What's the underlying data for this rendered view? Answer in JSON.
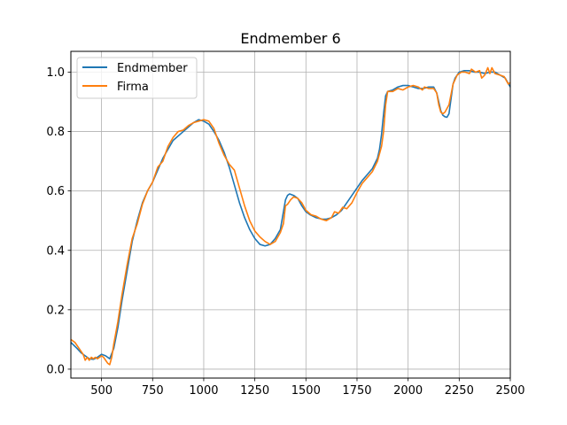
{
  "chart_data": {
    "type": "line",
    "title": "Endmember 6",
    "xlabel": "",
    "ylabel": "",
    "xlim": [
      350,
      2500
    ],
    "ylim": [
      -0.03,
      1.07
    ],
    "xticks": [
      500,
      750,
      1000,
      1250,
      1500,
      1750,
      2000,
      2250,
      2500
    ],
    "yticks": [
      0.0,
      0.2,
      0.4,
      0.6,
      0.8,
      1.0
    ],
    "xtick_labels": [
      "500",
      "750",
      "1000",
      "1250",
      "1500",
      "1750",
      "2000",
      "2250",
      "2500"
    ],
    "ytick_labels": [
      "0.0",
      "0.2",
      "0.4",
      "0.6",
      "0.8",
      "1.0"
    ],
    "grid": true,
    "legend_position": "top-left",
    "series": [
      {
        "name": "Endmember",
        "color": "#1f77b4",
        "x": [
          350,
          380,
          400,
          420,
          440,
          460,
          480,
          500,
          520,
          540,
          560,
          580,
          600,
          625,
          650,
          675,
          700,
          725,
          750,
          775,
          800,
          850,
          900,
          950,
          975,
          1000,
          1025,
          1050,
          1075,
          1100,
          1125,
          1150,
          1175,
          1200,
          1225,
          1250,
          1275,
          1300,
          1325,
          1350,
          1375,
          1390,
          1400,
          1410,
          1420,
          1440,
          1460,
          1480,
          1500,
          1520,
          1550,
          1580,
          1600,
          1625,
          1650,
          1675,
          1700,
          1725,
          1750,
          1775,
          1800,
          1825,
          1850,
          1860,
          1870,
          1880,
          1890,
          1900,
          1925,
          1950,
          1975,
          2000,
          2025,
          2050,
          2075,
          2100,
          2125,
          2140,
          2150,
          2160,
          2170,
          2180,
          2190,
          2200,
          2210,
          2220,
          2230,
          2250,
          2275,
          2300,
          2325,
          2350,
          2375,
          2400,
          2425,
          2450,
          2475,
          2500
        ],
        "y": [
          0.09,
          0.07,
          0.055,
          0.045,
          0.035,
          0.033,
          0.04,
          0.05,
          0.045,
          0.035,
          0.07,
          0.14,
          0.23,
          0.33,
          0.43,
          0.5,
          0.56,
          0.6,
          0.63,
          0.67,
          0.71,
          0.77,
          0.8,
          0.83,
          0.84,
          0.835,
          0.825,
          0.8,
          0.77,
          0.73,
          0.68,
          0.62,
          0.56,
          0.51,
          0.47,
          0.44,
          0.42,
          0.415,
          0.42,
          0.44,
          0.47,
          0.53,
          0.57,
          0.585,
          0.59,
          0.585,
          0.575,
          0.55,
          0.53,
          0.52,
          0.51,
          0.505,
          0.505,
          0.51,
          0.52,
          0.535,
          0.56,
          0.585,
          0.61,
          0.635,
          0.655,
          0.675,
          0.71,
          0.74,
          0.79,
          0.86,
          0.92,
          0.935,
          0.94,
          0.95,
          0.955,
          0.955,
          0.95,
          0.945,
          0.945,
          0.95,
          0.95,
          0.93,
          0.9,
          0.87,
          0.855,
          0.85,
          0.848,
          0.86,
          0.91,
          0.96,
          0.98,
          1.0,
          1.005,
          1.005,
          1.0,
          1.0,
          0.995,
          1.0,
          1.0,
          0.99,
          0.98,
          0.95
        ]
      },
      {
        "name": "Firma",
        "color": "#ff7f0e",
        "x": [
          350,
          370,
          390,
          410,
          420,
          430,
          440,
          450,
          460,
          470,
          480,
          500,
          510,
          520,
          530,
          540,
          550,
          560,
          580,
          600,
          625,
          650,
          675,
          700,
          725,
          750,
          775,
          800,
          825,
          850,
          875,
          900,
          925,
          950,
          975,
          1000,
          1025,
          1050,
          1075,
          1100,
          1125,
          1150,
          1175,
          1200,
          1225,
          1250,
          1275,
          1300,
          1325,
          1350,
          1375,
          1390,
          1400,
          1410,
          1425,
          1440,
          1460,
          1480,
          1500,
          1525,
          1550,
          1575,
          1600,
          1625,
          1640,
          1660,
          1680,
          1700,
          1725,
          1750,
          1775,
          1800,
          1825,
          1850,
          1870,
          1880,
          1890,
          1900,
          1925,
          1950,
          1975,
          2000,
          2025,
          2050,
          2070,
          2080,
          2100,
          2125,
          2140,
          2150,
          2160,
          2170,
          2180,
          2200,
          2220,
          2240,
          2260,
          2280,
          2300,
          2310,
          2330,
          2350,
          2360,
          2375,
          2390,
          2400,
          2410,
          2425,
          2450,
          2470,
          2490,
          2500
        ],
        "y": [
          0.1,
          0.09,
          0.07,
          0.05,
          0.03,
          0.04,
          0.03,
          0.04,
          0.035,
          0.04,
          0.035,
          0.045,
          0.04,
          0.03,
          0.02,
          0.015,
          0.04,
          0.085,
          0.16,
          0.25,
          0.35,
          0.44,
          0.49,
          0.555,
          0.6,
          0.63,
          0.68,
          0.7,
          0.75,
          0.78,
          0.8,
          0.805,
          0.82,
          0.83,
          0.835,
          0.84,
          0.835,
          0.81,
          0.76,
          0.72,
          0.69,
          0.67,
          0.61,
          0.55,
          0.5,
          0.465,
          0.445,
          0.43,
          0.42,
          0.43,
          0.46,
          0.49,
          0.55,
          0.555,
          0.57,
          0.58,
          0.575,
          0.56,
          0.535,
          0.52,
          0.515,
          0.505,
          0.5,
          0.51,
          0.53,
          0.525,
          0.545,
          0.54,
          0.56,
          0.595,
          0.625,
          0.645,
          0.665,
          0.7,
          0.75,
          0.8,
          0.89,
          0.935,
          0.935,
          0.945,
          0.94,
          0.95,
          0.955,
          0.95,
          0.94,
          0.95,
          0.945,
          0.945,
          0.93,
          0.89,
          0.865,
          0.86,
          0.865,
          0.89,
          0.96,
          0.99,
          1.0,
          1.0,
          0.995,
          1.01,
          1.0,
          1.005,
          0.98,
          0.99,
          1.015,
          0.995,
          1.015,
          0.995,
          0.99,
          0.985,
          0.96,
          0.965
        ]
      }
    ]
  }
}
